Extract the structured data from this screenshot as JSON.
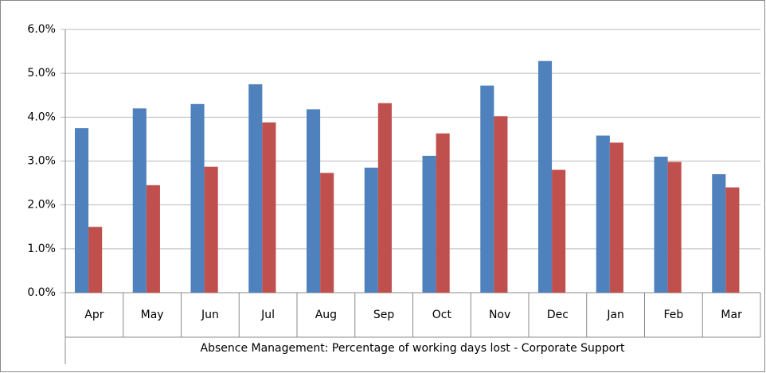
{
  "chart_data": {
    "type": "bar",
    "xlabel": "Absence Management: Percentage of working days lost - Corporate Support",
    "categories": [
      "Apr",
      "May",
      "Jun",
      "Jul",
      "Aug",
      "Sep",
      "Oct",
      "Nov",
      "Dec",
      "Jan",
      "Feb",
      "Mar"
    ],
    "series": [
      {
        "color": "#4f81bd",
        "values": [
          3.75,
          4.2,
          4.3,
          4.75,
          4.18,
          2.85,
          3.12,
          4.72,
          5.28,
          3.58,
          3.1,
          2.7
        ]
      },
      {
        "color": "#c0504d",
        "values": [
          1.5,
          2.45,
          2.87,
          3.88,
          2.73,
          4.32,
          3.63,
          4.02,
          2.8,
          3.42,
          2.98,
          2.4
        ]
      }
    ],
    "ylim": [
      0,
      6
    ],
    "yticks": [
      {
        "value": 0,
        "label": "0.0%"
      },
      {
        "value": 1,
        "label": "1.0%"
      },
      {
        "value": 2,
        "label": "2.0%"
      },
      {
        "value": 3,
        "label": "3.0%"
      },
      {
        "value": 4,
        "label": "4.0%"
      },
      {
        "value": 5,
        "label": "5.0%"
      },
      {
        "value": 6,
        "label": "6.0%"
      }
    ],
    "grid": true
  }
}
